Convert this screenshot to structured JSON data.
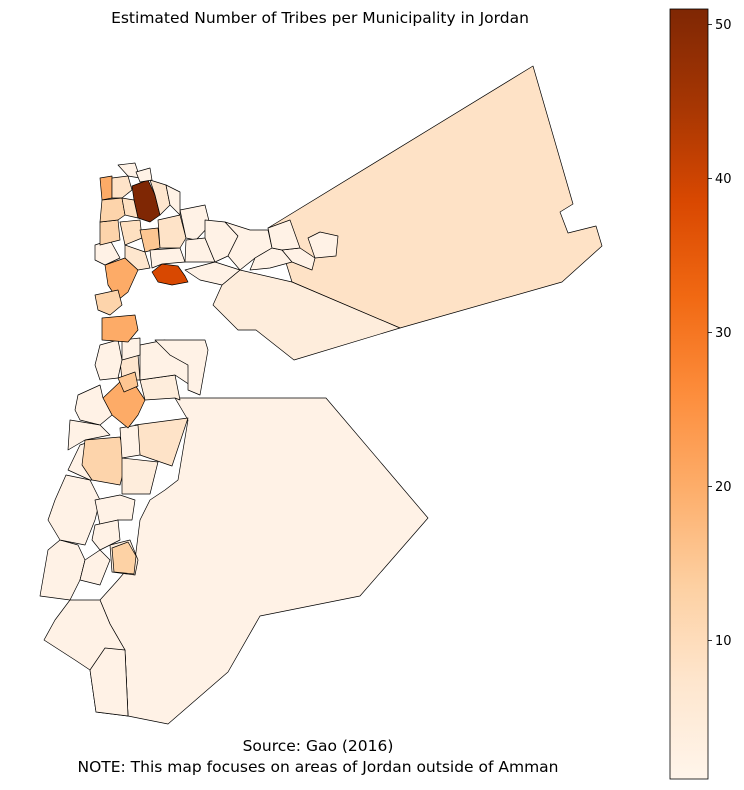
{
  "title": "Estimated Number of Tribes per Municipality in Jordan",
  "source_line": "Source: Gao (2016)",
  "note_line": "NOTE: This map focuses on areas of Jordan outside of Amman",
  "colorbar": {
    "colormap": "Oranges",
    "min": 1,
    "max": 51,
    "ticks": [
      10,
      20,
      30,
      40,
      50
    ],
    "tick_labels": [
      "10",
      "20",
      "30",
      "40",
      "50"
    ]
  },
  "colors": {
    "outline": "#000000",
    "low": "#fff5eb",
    "high": "#7f2704"
  }
}
